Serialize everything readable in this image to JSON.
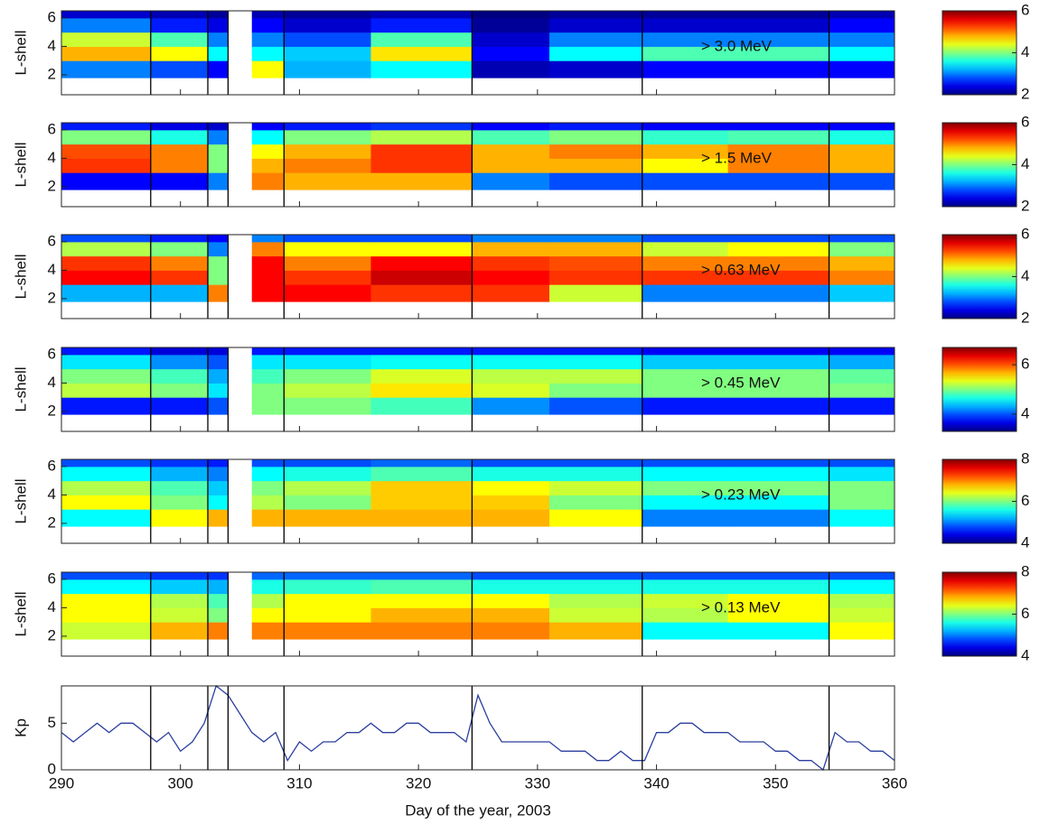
{
  "chart_data": [
    {
      "type": "heatmap",
      "ylabel": "L-shell",
      "annotation": "> 3.0 MeV",
      "colormap": "jet",
      "xlim": [
        290,
        360
      ],
      "xticks": [
        290,
        300,
        310,
        320,
        330,
        340,
        350,
        360
      ],
      "ylim": [
        0.6,
        6.5
      ],
      "yticks": [
        2,
        4,
        6
      ],
      "clim": [
        2,
        6
      ],
      "cticks": [
        2,
        4,
        6
      ],
      "vlines": [
        297.5,
        302.3,
        304,
        308.7,
        324.5,
        338.8,
        354.5
      ],
      "x_edges": [
        290,
        297.5,
        302.3,
        304,
        306,
        308.7,
        316,
        324.5,
        331,
        338.8,
        346,
        354.5,
        360
      ],
      "y_edges": [
        1.8,
        3,
        4,
        5,
        6,
        6.5
      ],
      "values": [
        [
          3.0,
          2.8,
          2.5,
          null,
          4.5,
          3.2,
          3.5,
          2.2,
          2.3,
          2.5,
          2.5,
          2.5
        ],
        [
          4.8,
          4.5,
          3.5,
          null,
          3.5,
          3.3,
          4.6,
          2.5,
          3.5,
          3.8,
          3.8,
          3.5
        ],
        [
          4.3,
          3.8,
          3.0,
          null,
          3.0,
          2.8,
          3.8,
          2.3,
          3.0,
          3.0,
          3.0,
          3.0
        ],
        [
          3.0,
          2.6,
          2.4,
          null,
          2.5,
          2.3,
          2.6,
          2.1,
          2.3,
          2.3,
          2.3,
          2.5
        ],
        [
          2.3,
          2.2,
          2.1,
          null,
          2.2,
          2.1,
          2.2,
          2.0,
          2.1,
          2.1,
          2.1,
          2.2
        ]
      ]
    },
    {
      "type": "heatmap",
      "ylabel": "L-shell",
      "annotation": "> 1.5 MeV",
      "colormap": "jet",
      "xlim": [
        290,
        360
      ],
      "xticks": [
        290,
        300,
        310,
        320,
        330,
        340,
        350,
        360
      ],
      "ylim": [
        0.6,
        6.5
      ],
      "yticks": [
        2,
        4,
        6
      ],
      "clim": [
        2,
        6
      ],
      "cticks": [
        2,
        4,
        6
      ],
      "vlines": [
        297.5,
        302.3,
        304,
        308.7,
        324.5,
        338.8,
        354.5
      ],
      "x_edges": [
        290,
        297.5,
        302.3,
        304,
        306,
        308.7,
        316,
        324.5,
        331,
        338.8,
        346,
        354.5,
        360
      ],
      "y_edges": [
        1.8,
        3,
        4,
        5,
        6,
        6.5
      ],
      "values": [
        [
          2.5,
          2.5,
          3.0,
          null,
          5.0,
          4.8,
          4.8,
          3.0,
          2.8,
          2.8,
          2.8,
          2.8
        ],
        [
          5.3,
          5.0,
          4.0,
          null,
          4.8,
          5.0,
          5.3,
          4.8,
          4.8,
          4.5,
          5.0,
          4.8
        ],
        [
          5.2,
          5.0,
          4.0,
          null,
          4.5,
          4.8,
          5.3,
          4.8,
          5.0,
          4.8,
          5.0,
          4.8
        ],
        [
          4.0,
          3.6,
          3.0,
          null,
          3.5,
          4.0,
          4.2,
          3.8,
          4.0,
          3.7,
          3.8,
          3.6
        ],
        [
          2.6,
          2.4,
          2.3,
          null,
          2.5,
          2.6,
          2.7,
          2.5,
          2.6,
          2.5,
          2.5,
          2.5
        ]
      ]
    },
    {
      "type": "heatmap",
      "ylabel": "L-shell",
      "annotation": "> 0.63 MeV",
      "colormap": "jet",
      "xlim": [
        290,
        360
      ],
      "xticks": [
        290,
        300,
        310,
        320,
        330,
        340,
        350,
        360
      ],
      "ylim": [
        0.6,
        6.5
      ],
      "yticks": [
        2,
        4,
        6
      ],
      "clim": [
        2,
        6
      ],
      "cticks": [
        2,
        4,
        6
      ],
      "vlines": [
        297.5,
        302.3,
        304,
        308.7,
        324.5,
        338.8,
        354.5
      ],
      "x_edges": [
        290,
        297.5,
        302.3,
        304,
        306,
        308.7,
        316,
        324.5,
        331,
        338.8,
        346,
        354.5,
        360
      ],
      "y_edges": [
        1.8,
        3,
        4,
        5,
        6,
        6.5
      ],
      "values": [
        [
          3.2,
          3.2,
          5.0,
          null,
          5.5,
          5.5,
          5.3,
          5.3,
          4.3,
          3.0,
          3.0,
          3.3
        ],
        [
          5.5,
          5.3,
          4.0,
          null,
          5.5,
          5.3,
          5.7,
          5.5,
          5.3,
          5.3,
          5.3,
          5.0
        ],
        [
          5.3,
          5.0,
          4.0,
          null,
          5.5,
          5.0,
          5.5,
          5.3,
          5.2,
          5.0,
          5.0,
          4.8
        ],
        [
          4.2,
          4.0,
          3.0,
          null,
          5.0,
          4.5,
          4.5,
          4.8,
          4.8,
          4.3,
          4.5,
          4.0
        ],
        [
          2.8,
          2.6,
          2.5,
          null,
          3.0,
          2.8,
          2.8,
          3.0,
          3.0,
          2.8,
          2.8,
          2.8
        ]
      ]
    },
    {
      "type": "heatmap",
      "ylabel": "L-shell",
      "annotation": "> 0.45 MeV",
      "colormap": "jet",
      "xlim": [
        290,
        360
      ],
      "xticks": [
        290,
        300,
        310,
        320,
        330,
        340,
        350,
        360
      ],
      "ylim": [
        0.6,
        6.5
      ],
      "yticks": [
        2,
        4,
        6
      ],
      "clim": [
        3.3,
        6.7
      ],
      "cticks": [
        4,
        6
      ],
      "vlines": [
        297.5,
        302.3,
        304,
        308.7,
        324.5,
        338.8,
        354.5
      ],
      "x_edges": [
        290,
        297.5,
        302.3,
        304,
        306,
        308.7,
        316,
        324.5,
        331,
        338.8,
        346,
        354.5,
        360
      ],
      "y_edges": [
        1.8,
        3,
        4,
        5,
        6,
        6.5
      ],
      "values": [
        [
          3.8,
          3.8,
          4.0,
          null,
          5.0,
          5.0,
          4.8,
          4.2,
          4.0,
          3.8,
          3.8,
          3.8
        ],
        [
          5.2,
          5.0,
          4.5,
          null,
          5.0,
          5.2,
          5.5,
          5.3,
          5.0,
          5.0,
          5.0,
          5.0
        ],
        [
          5.0,
          4.8,
          4.3,
          null,
          4.8,
          5.0,
          5.3,
          5.2,
          5.2,
          5.0,
          5.0,
          4.9
        ],
        [
          4.5,
          4.2,
          4.0,
          null,
          4.5,
          4.5,
          4.6,
          4.6,
          4.6,
          4.4,
          4.4,
          4.3
        ],
        [
          3.8,
          3.6,
          3.6,
          null,
          3.8,
          3.8,
          3.8,
          3.8,
          3.8,
          3.7,
          3.7,
          3.7
        ]
      ]
    },
    {
      "type": "heatmap",
      "ylabel": "L-shell",
      "annotation": "> 0.23 MeV",
      "colormap": "jet",
      "xlim": [
        290,
        360
      ],
      "xticks": [
        290,
        300,
        310,
        320,
        330,
        340,
        350,
        360
      ],
      "ylim": [
        0.6,
        6.5
      ],
      "yticks": [
        2,
        4,
        6
      ],
      "clim": [
        4,
        8
      ],
      "cticks": [
        4,
        6,
        8
      ],
      "vlines": [
        297.5,
        302.3,
        304,
        308.7,
        324.5,
        338.8,
        354.5
      ],
      "x_edges": [
        290,
        297.5,
        302.3,
        304,
        306,
        308.7,
        316,
        324.5,
        331,
        338.8,
        346,
        354.5,
        360
      ],
      "y_edges": [
        1.8,
        3,
        4,
        5,
        6,
        6.5
      ],
      "values": [
        [
          5.5,
          6.5,
          6.8,
          null,
          6.8,
          6.8,
          6.8,
          6.8,
          6.5,
          5.0,
          5.0,
          5.5
        ],
        [
          6.5,
          6.0,
          5.5,
          null,
          6.2,
          6.0,
          6.7,
          6.7,
          6.0,
          5.5,
          5.5,
          6.0
        ],
        [
          6.2,
          5.8,
          5.3,
          null,
          6.0,
          6.2,
          6.7,
          6.5,
          6.3,
          6.0,
          6.0,
          6.0
        ],
        [
          5.5,
          5.2,
          5.0,
          null,
          5.5,
          5.6,
          5.8,
          5.6,
          5.6,
          5.5,
          5.5,
          5.4
        ],
        [
          4.8,
          4.7,
          4.6,
          null,
          4.8,
          4.8,
          4.9,
          4.8,
          4.8,
          4.8,
          4.8,
          4.8
        ]
      ]
    },
    {
      "type": "heatmap",
      "ylabel": "L-shell",
      "annotation": "> 0.13 MeV",
      "colormap": "jet",
      "xlim": [
        290,
        360
      ],
      "xticks": [
        290,
        300,
        310,
        320,
        330,
        340,
        350,
        360
      ],
      "ylim": [
        0.6,
        6.5
      ],
      "yticks": [
        2,
        4,
        6
      ],
      "clim": [
        4,
        8
      ],
      "cticks": [
        4,
        6,
        8
      ],
      "vlines": [
        297.5,
        302.3,
        304,
        308.7,
        324.5,
        338.8,
        354.5
      ],
      "x_edges": [
        290,
        297.5,
        302.3,
        304,
        306,
        308.7,
        316,
        324.5,
        331,
        338.8,
        346,
        354.5,
        360
      ],
      "y_edges": [
        1.8,
        3,
        4,
        5,
        6,
        6.5
      ],
      "values": [
        [
          6.3,
          6.8,
          7.0,
          null,
          7.0,
          7.0,
          7.0,
          7.0,
          6.8,
          5.5,
          5.5,
          6.5
        ],
        [
          6.5,
          6.3,
          6.0,
          null,
          6.5,
          6.5,
          6.8,
          6.8,
          6.3,
          6.2,
          6.5,
          6.3
        ],
        [
          6.5,
          6.2,
          5.8,
          null,
          6.2,
          6.5,
          6.5,
          6.5,
          6.2,
          6.3,
          6.5,
          6.2
        ],
        [
          5.5,
          5.3,
          5.2,
          null,
          5.6,
          5.7,
          5.8,
          5.6,
          5.6,
          5.6,
          5.6,
          5.5
        ],
        [
          4.8,
          4.7,
          4.7,
          null,
          4.9,
          4.9,
          4.9,
          4.8,
          4.8,
          4.8,
          4.8,
          4.8
        ]
      ]
    },
    {
      "type": "line",
      "ylabel": "Kp",
      "xlabel": "Day of the year, 2003",
      "color": "#2b3f9e",
      "xlim": [
        290,
        360
      ],
      "xticks": [
        290,
        300,
        310,
        320,
        330,
        340,
        350,
        360
      ],
      "ylim": [
        0,
        9
      ],
      "yticks": [
        0,
        5
      ],
      "vlines": [
        297.5,
        302.3,
        304,
        308.7,
        324.5,
        338.8,
        354.5
      ],
      "x": [
        290,
        291,
        292,
        293,
        294,
        295,
        296,
        297,
        298,
        299,
        300,
        301,
        302,
        303,
        304,
        305,
        306,
        307,
        308,
        309,
        310,
        311,
        312,
        313,
        314,
        315,
        316,
        317,
        318,
        319,
        320,
        321,
        322,
        323,
        324,
        325,
        326,
        327,
        328,
        329,
        330,
        331,
        332,
        333,
        334,
        335,
        336,
        337,
        338,
        339,
        340,
        341,
        342,
        343,
        344,
        345,
        346,
        347,
        348,
        349,
        350,
        351,
        352,
        353,
        354,
        355,
        356,
        357,
        358,
        359,
        360
      ],
      "values": [
        4,
        3,
        4,
        5,
        4,
        5,
        5,
        4,
        3,
        4,
        2,
        3,
        5,
        9,
        8,
        6,
        4,
        3,
        4,
        1,
        3,
        2,
        3,
        3,
        4,
        4,
        5,
        4,
        4,
        5,
        5,
        4,
        4,
        4,
        3,
        8,
        5,
        3,
        3,
        3,
        3,
        3,
        2,
        2,
        2,
        1,
        1,
        2,
        1,
        1,
        4,
        4,
        5,
        5,
        4,
        4,
        4,
        3,
        3,
        3,
        2,
        2,
        1,
        1,
        0,
        4,
        3,
        3,
        2,
        2,
        1
      ]
    }
  ]
}
